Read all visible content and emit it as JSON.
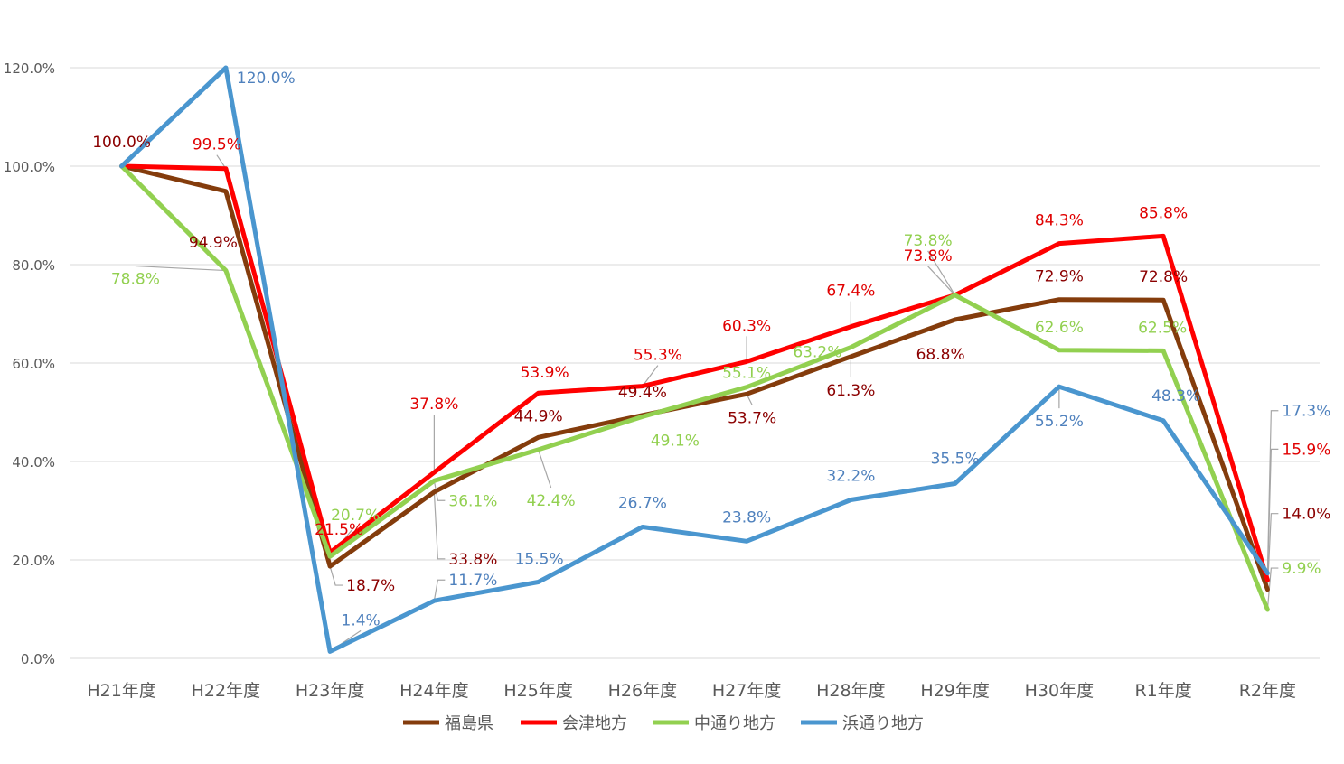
{
  "chart_data": {
    "type": "line",
    "title": "",
    "xlabel": "",
    "ylabel": "",
    "ylim": [
      0,
      120
    ],
    "y_ticks": [
      0,
      20,
      40,
      60,
      80,
      100,
      120
    ],
    "y_tick_labels": [
      "0.0%",
      "20.0%",
      "40.0%",
      "60.0%",
      "80.0%",
      "100.0%",
      "120.0%"
    ],
    "grid": true,
    "legend_position": "bottom",
    "categories": [
      "H21年度",
      "H22年度",
      "H23年度",
      "H24年度",
      "H25年度",
      "H26年度",
      "H27年度",
      "H28年度",
      "H29年度",
      "H30年度",
      "R1年度",
      "R2年度"
    ],
    "series": [
      {
        "name": "福島県",
        "color": "#843c0c",
        "label_color": "#8b0000",
        "values": [
          100.0,
          94.9,
          18.7,
          33.8,
          44.9,
          49.4,
          53.7,
          61.3,
          68.8,
          72.9,
          72.8,
          14.0
        ],
        "labels": [
          "",
          "94.9%",
          "18.7%",
          "33.8%",
          "44.9%",
          "49.4%",
          "53.7%",
          "61.3%",
          "68.8%",
          "72.9%",
          "72.8%",
          "14.0%"
        ]
      },
      {
        "name": "会津地方",
        "color": "#ff0000",
        "label_color": "#e00000",
        "values": [
          100.0,
          99.5,
          21.5,
          37.8,
          53.9,
          55.3,
          60.3,
          67.4,
          73.8,
          84.3,
          85.8,
          15.9
        ],
        "labels": [
          "",
          "99.5%",
          "21.5%",
          "37.8%",
          "53.9%",
          "55.3%",
          "60.3%",
          "67.4%",
          "73.8%",
          "84.3%",
          "85.8%",
          "15.9%"
        ]
      },
      {
        "name": "中通り地方",
        "color": "#92d050",
        "label_color": "#92d050",
        "values": [
          100.0,
          78.8,
          20.7,
          36.1,
          42.4,
          49.1,
          55.1,
          63.2,
          73.8,
          62.6,
          62.5,
          9.9
        ],
        "labels": [
          "",
          "78.8%",
          "20.7%",
          "36.1%",
          "42.4%",
          "49.1%",
          "55.1%",
          "63.2%",
          "73.8%",
          "62.6%",
          "62.5%",
          "9.9%"
        ]
      },
      {
        "name": "浜通り地方",
        "color": "#4a96cf",
        "label_color": "#4f81bd",
        "values": [
          100.0,
          120.0,
          1.4,
          11.7,
          15.5,
          26.7,
          23.8,
          32.2,
          35.5,
          55.2,
          48.3,
          17.3
        ],
        "labels": [
          "",
          "120.0%",
          "1.4%",
          "11.7%",
          "15.5%",
          "26.7%",
          "23.8%",
          "32.2%",
          "35.5%",
          "55.2%",
          "48.3%",
          "17.3%"
        ]
      }
    ],
    "shared_label": {
      "text": "100.0%",
      "color": "#8b0000"
    }
  }
}
